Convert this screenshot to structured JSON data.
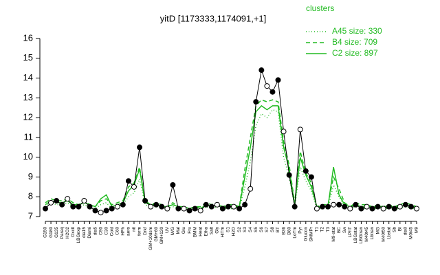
{
  "chart_data": {
    "type": "line",
    "title": "yitD [1173333,1174091,+1]",
    "legend_title": "clusters",
    "categories": [
      "G150",
      "G180",
      "G135",
      "Paraq",
      "H2O2",
      "Oxctl",
      "LBGexp",
      "dia15",
      "Diami",
      "dia5",
      "C90",
      "C30",
      "Cold",
      "C60",
      "HPh",
      "aero",
      "nit",
      "ferm",
      "Drkf",
      "GM+10dsm",
      "GM+60",
      "GM+120",
      "UV",
      "M/G",
      "Mal",
      "Glu",
      "Fru",
      "BMM",
      "Heat",
      "Etha",
      "Salt",
      "Gly",
      "HiTm",
      "S1",
      "H2O",
      "S2",
      "S3",
      "S4",
      "S5",
      "S6",
      "S7",
      "S8",
      "BT",
      "B36",
      "B60",
      "LoTm",
      "Pyr",
      "Glucon",
      "SMMPr",
      "T1",
      "T2",
      "T3",
      "M9-stat",
      "BC",
      "Sw",
      "LPhT",
      "LBGstat",
      "LBGtran",
      "M40t45",
      "Lbtran",
      "MG",
      "M40t50",
      "Lbstat",
      "Sb",
      "BI",
      "dia0",
      "M0t45",
      "M9"
    ],
    "values": [
      7.4,
      7.7,
      7.8,
      7.6,
      7.9,
      7.5,
      7.5,
      7.8,
      7.5,
      7.3,
      7.2,
      7.3,
      7.4,
      7.5,
      7.6,
      8.8,
      8.5,
      10.5,
      7.8,
      7.5,
      7.6,
      7.5,
      7.4,
      8.6,
      7.4,
      7.4,
      7.3,
      7.4,
      7.3,
      7.6,
      7.5,
      7.6,
      7.4,
      7.5,
      7.5,
      7.4,
      7.6,
      8.4,
      12.8,
      14.4,
      13.6,
      13.3,
      13.9,
      11.3,
      9.1,
      7.5,
      11.4,
      9.3,
      9.0,
      7.4,
      7.5,
      7.5,
      7.6,
      7.6,
      7.5,
      7.4,
      7.6,
      7.4,
      7.5,
      7.4,
      7.5,
      7.4,
      7.5,
      7.4,
      7.5,
      7.6,
      7.5,
      7.4
    ],
    "series": [
      {
        "name": "A45 size: 330",
        "color": "#22bb22",
        "dash": "1,3",
        "values": [
          7.5,
          7.7,
          7.6,
          7.6,
          7.7,
          7.5,
          7.5,
          7.6,
          7.5,
          7.4,
          7.6,
          7.7,
          7.4,
          7.5,
          7.6,
          8.0,
          8.2,
          8.9,
          7.6,
          7.5,
          7.5,
          7.5,
          7.4,
          7.5,
          7.4,
          7.4,
          7.3,
          7.4,
          7.4,
          7.5,
          7.4,
          7.5,
          7.4,
          7.4,
          7.4,
          7.4,
          8.5,
          9.8,
          11.6,
          12.2,
          12.0,
          12.4,
          12.3,
          10.0,
          9.0,
          7.5,
          9.5,
          8.8,
          8.3,
          7.4,
          7.4,
          7.4,
          8.6,
          8.0,
          7.5,
          7.4,
          7.5,
          7.4,
          7.4,
          7.4,
          7.4,
          7.4,
          7.4,
          7.4,
          7.4,
          7.5,
          7.4,
          7.4
        ]
      },
      {
        "name": "B4 size: 709",
        "color": "#22bb22",
        "dash": "6,4",
        "values": [
          7.7,
          7.9,
          7.8,
          7.8,
          7.9,
          7.7,
          7.6,
          7.8,
          7.6,
          7.5,
          7.8,
          7.9,
          7.6,
          7.7,
          7.8,
          8.5,
          8.7,
          9.5,
          7.8,
          7.6,
          7.7,
          7.6,
          7.5,
          7.7,
          7.5,
          7.5,
          7.4,
          7.5,
          7.5,
          7.7,
          7.6,
          7.7,
          7.5,
          7.6,
          7.6,
          7.5,
          9.4,
          11.0,
          12.6,
          12.9,
          12.8,
          12.9,
          12.8,
          10.8,
          9.6,
          7.7,
          10.3,
          9.2,
          8.7,
          7.5,
          7.6,
          7.6,
          9.0,
          8.4,
          7.7,
          7.5,
          7.7,
          7.6,
          7.6,
          7.5,
          7.6,
          7.5,
          7.6,
          7.5,
          7.6,
          7.7,
          7.6,
          7.5
        ]
      },
      {
        "name": "C2 size: 897",
        "color": "#22bb22",
        "dash": "none",
        "values": [
          7.6,
          7.8,
          7.7,
          7.7,
          7.8,
          7.6,
          7.6,
          7.7,
          7.6,
          7.5,
          7.9,
          8.1,
          7.5,
          7.6,
          7.7,
          8.3,
          8.6,
          9.4,
          7.7,
          7.6,
          7.6,
          7.5,
          7.5,
          7.6,
          7.5,
          7.5,
          7.4,
          7.5,
          7.4,
          7.6,
          7.5,
          7.6,
          7.5,
          7.5,
          7.5,
          7.5,
          9.0,
          10.5,
          12.3,
          12.6,
          12.4,
          12.6,
          12.6,
          10.5,
          9.4,
          7.6,
          10.0,
          9.1,
          8.5,
          7.5,
          7.5,
          7.5,
          9.5,
          8.1,
          7.6,
          7.5,
          7.6,
          7.5,
          7.5,
          7.5,
          7.5,
          7.5,
          7.5,
          7.5,
          7.5,
          7.6,
          7.5,
          7.5
        ]
      }
    ],
    "ylim": [
      7,
      16
    ],
    "yticks": [
      7,
      8,
      9,
      10,
      11,
      12,
      13,
      14,
      15,
      16
    ]
  }
}
